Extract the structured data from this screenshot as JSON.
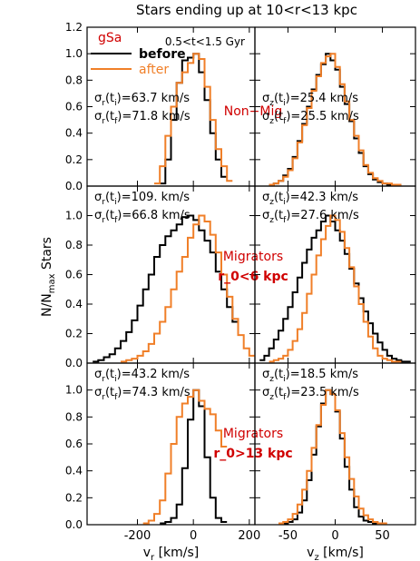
{
  "figure": {
    "title": "Stars ending up at 10<r<13 kpc",
    "ylabel": {
      "base": "N/N",
      "sub": "max",
      "rest": " Stars"
    },
    "legend": {
      "galaxy": "gSa",
      "time_range": "0.5<t<1.5 Gyr",
      "before": "before",
      "after": "after"
    },
    "colors": {
      "before": "#000000",
      "after": "#f07f28",
      "group_label": "#d00000",
      "frame": "#000000"
    }
  },
  "chart_data": [
    {
      "type": "histogram",
      "row": 0,
      "col": 0,
      "xlim": [
        -380,
        220
      ],
      "ylim": [
        0,
        1.2
      ],
      "xticks": [
        -200,
        0,
        200
      ],
      "yticks": [
        0.0,
        0.2,
        0.4,
        0.6,
        0.8,
        1.0,
        1.2
      ],
      "xlabel": "",
      "ylabel_ticks": [
        "0.0",
        "0.2",
        "0.4",
        "0.6",
        "0.8",
        "1.0",
        "1.2"
      ],
      "group_label": [
        "Non−Mig"
      ],
      "annotations": [
        {
          "sym": "σ",
          "sub1": "r",
          "sub2": "i",
          "val": "=63.7 km/s"
        },
        {
          "sym": "σ",
          "sub1": "r",
          "sub2": "f",
          "val": "=71.8 km/s"
        }
      ],
      "series": [
        {
          "name": "before",
          "bin_start": -120,
          "bin_width": 20,
          "values": [
            0.02,
            0.2,
            0.5,
            0.78,
            0.95,
            0.97,
            1.0,
            0.86,
            0.65,
            0.4,
            0.2,
            0.07
          ]
        },
        {
          "name": "after",
          "bin_start": -140,
          "bin_width": 20,
          "values": [
            0.02,
            0.15,
            0.38,
            0.6,
            0.78,
            0.86,
            0.93,
            1.0,
            0.96,
            0.75,
            0.5,
            0.28,
            0.15,
            0.04
          ]
        }
      ]
    },
    {
      "type": "histogram",
      "row": 0,
      "col": 1,
      "xlim": [
        -85,
        85
      ],
      "ylim": [
        0,
        1.2
      ],
      "xticks": [
        -50,
        0,
        50
      ],
      "yticks": [
        0.0,
        0.2,
        0.4,
        0.6,
        0.8,
        1.0,
        1.2
      ],
      "xlabel": "",
      "group_label": [],
      "annotations": [
        {
          "sym": "σ",
          "sub1": "z",
          "sub2": "i",
          "val": "=25.4 km/s"
        },
        {
          "sym": "σ",
          "sub1": "z",
          "sub2": "f",
          "val": "=25.5 km/s"
        }
      ],
      "series": [
        {
          "name": "before",
          "bin_start": -70,
          "bin_width": 5,
          "values": [
            0.01,
            0.02,
            0.04,
            0.08,
            0.13,
            0.22,
            0.34,
            0.47,
            0.6,
            0.73,
            0.84,
            0.92,
            1.0,
            0.95,
            0.88,
            0.75,
            0.62,
            0.49,
            0.36,
            0.25,
            0.15,
            0.09,
            0.05,
            0.03,
            0.02,
            0.01,
            0.01,
            0.01
          ]
        },
        {
          "name": "after",
          "bin_start": -70,
          "bin_width": 5,
          "values": [
            0.01,
            0.02,
            0.04,
            0.07,
            0.12,
            0.21,
            0.33,
            0.46,
            0.59,
            0.72,
            0.83,
            0.93,
            0.98,
            1.0,
            0.9,
            0.77,
            0.64,
            0.5,
            0.38,
            0.27,
            0.16,
            0.1,
            0.06,
            0.04,
            0.02,
            0.02,
            0.01,
            0.01
          ]
        }
      ]
    },
    {
      "type": "histogram",
      "row": 1,
      "col": 0,
      "xlim": [
        -380,
        220
      ],
      "ylim": [
        0,
        1.2
      ],
      "xticks": [
        -200,
        0,
        200
      ],
      "yticks": [
        0.0,
        0.2,
        0.4,
        0.6,
        0.8,
        1.0,
        1.2
      ],
      "xlabel": "",
      "ylabel_ticks": [
        "0.0",
        "0.2",
        "0.4",
        "0.6",
        "0.8",
        "1.0",
        ""
      ],
      "group_label": [
        "Migrators",
        "r_0<6 kpc"
      ],
      "annotations": [
        {
          "sym": "σ",
          "sub1": "r",
          "sub2": "i",
          "val": "=109. km/s"
        },
        {
          "sym": "σ",
          "sub1": "r",
          "sub2": "f",
          "val": "=66.8 km/s"
        }
      ],
      "series": [
        {
          "name": "before",
          "bin_start": -360,
          "bin_width": 20,
          "values": [
            0.01,
            0.02,
            0.04,
            0.06,
            0.1,
            0.15,
            0.21,
            0.29,
            0.39,
            0.5,
            0.6,
            0.72,
            0.8,
            0.86,
            0.9,
            0.94,
            0.99,
            1.0,
            0.97,
            0.9,
            0.83,
            0.75,
            0.62,
            0.5,
            0.38,
            0.28
          ]
        },
        {
          "name": "after",
          "bin_start": -260,
          "bin_width": 20,
          "values": [
            0.01,
            0.02,
            0.03,
            0.05,
            0.08,
            0.13,
            0.2,
            0.28,
            0.38,
            0.5,
            0.62,
            0.72,
            0.85,
            0.94,
            1.0,
            0.96,
            0.87,
            0.75,
            0.6,
            0.45,
            0.3,
            0.19,
            0.1,
            0.05
          ]
        }
      ]
    },
    {
      "type": "histogram",
      "row": 1,
      "col": 1,
      "xlim": [
        -85,
        85
      ],
      "ylim": [
        0,
        1.2
      ],
      "xticks": [
        -50,
        0,
        50
      ],
      "yticks": [
        0.0,
        0.2,
        0.4,
        0.6,
        0.8,
        1.0,
        1.2
      ],
      "xlabel": "",
      "group_label": [],
      "annotations": [
        {
          "sym": "σ",
          "sub1": "z",
          "sub2": "i",
          "val": "=42.3 km/s"
        },
        {
          "sym": "σ",
          "sub1": "z",
          "sub2": "f",
          "val": "=27.6 km/s"
        }
      ],
      "series": [
        {
          "name": "before",
          "bin_start": -80,
          "bin_width": 5,
          "values": [
            0.02,
            0.05,
            0.1,
            0.16,
            0.22,
            0.3,
            0.38,
            0.48,
            0.58,
            0.68,
            0.77,
            0.85,
            0.9,
            0.96,
            1.0,
            0.96,
            0.9,
            0.83,
            0.74,
            0.64,
            0.54,
            0.44,
            0.35,
            0.27,
            0.2,
            0.14,
            0.09,
            0.05,
            0.03,
            0.02,
            0.01,
            0.01
          ]
        },
        {
          "name": "after",
          "bin_start": -70,
          "bin_width": 5,
          "values": [
            0.01,
            0.02,
            0.03,
            0.05,
            0.09,
            0.15,
            0.23,
            0.34,
            0.47,
            0.6,
            0.73,
            0.84,
            0.93,
            1.0,
            0.97,
            0.89,
            0.78,
            0.65,
            0.52,
            0.4,
            0.28,
            0.18,
            0.1,
            0.05,
            0.03,
            0.02,
            0.01,
            0.01
          ]
        }
      ]
    },
    {
      "type": "histogram",
      "row": 2,
      "col": 0,
      "xlim": [
        -380,
        220
      ],
      "ylim": [
        0,
        1.2
      ],
      "xticks": [
        -200,
        0,
        200
      ],
      "yticks": [
        0.0,
        0.2,
        0.4,
        0.6,
        0.8,
        1.0,
        1.2
      ],
      "xlabel": "v_r [km/s]",
      "ylabel_ticks": [
        "0.0",
        "0.2",
        "0.4",
        "0.6",
        "0.8",
        "1.0",
        ""
      ],
      "group_label": [
        "Migrators",
        "r_0>13 kpc"
      ],
      "annotations": [
        {
          "sym": "σ",
          "sub1": "r",
          "sub2": "i",
          "val": "=43.2 km/s"
        },
        {
          "sym": "σ",
          "sub1": "r",
          "sub2": "f",
          "val": "=74.3 km/s"
        }
      ],
      "series": [
        {
          "name": "before",
          "bin_start": -120,
          "bin_width": 20,
          "values": [
            0.01,
            0.02,
            0.05,
            0.15,
            0.42,
            0.78,
            1.0,
            0.88,
            0.5,
            0.2,
            0.05,
            0.02
          ]
        },
        {
          "name": "after",
          "bin_start": -180,
          "bin_width": 20,
          "values": [
            0.01,
            0.03,
            0.08,
            0.18,
            0.38,
            0.6,
            0.8,
            0.9,
            0.95,
            1.0,
            0.92,
            0.86,
            0.82,
            0.7,
            0.58
          ]
        }
      ]
    },
    {
      "type": "histogram",
      "row": 2,
      "col": 1,
      "xlim": [
        -85,
        85
      ],
      "ylim": [
        0,
        1.2
      ],
      "xticks": [
        -50,
        0,
        50
      ],
      "yticks": [
        0.0,
        0.2,
        0.4,
        0.6,
        0.8,
        1.0,
        1.2
      ],
      "xlabel": "v_z [km/s]",
      "group_label": [],
      "annotations": [
        {
          "sym": "σ",
          "sub1": "z",
          "sub2": "i",
          "val": "=18.5 km/s"
        },
        {
          "sym": "σ",
          "sub1": "z",
          "sub2": "f",
          "val": "=23.5 km/s"
        }
      ],
      "series": [
        {
          "name": "before",
          "bin_start": -55,
          "bin_width": 5,
          "values": [
            0.01,
            0.02,
            0.04,
            0.09,
            0.18,
            0.33,
            0.52,
            0.73,
            0.9,
            1.0,
            0.97,
            0.84,
            0.64,
            0.43,
            0.26,
            0.13,
            0.06,
            0.03,
            0.02,
            0.01,
            0.01
          ]
        },
        {
          "name": "after",
          "bin_start": -60,
          "bin_width": 5,
          "values": [
            0.01,
            0.02,
            0.04,
            0.08,
            0.15,
            0.26,
            0.4,
            0.57,
            0.74,
            0.89,
            1.0,
            0.97,
            0.85,
            0.68,
            0.5,
            0.34,
            0.21,
            0.12,
            0.07,
            0.04,
            0.02,
            0.01,
            0.01
          ]
        }
      ]
    }
  ]
}
